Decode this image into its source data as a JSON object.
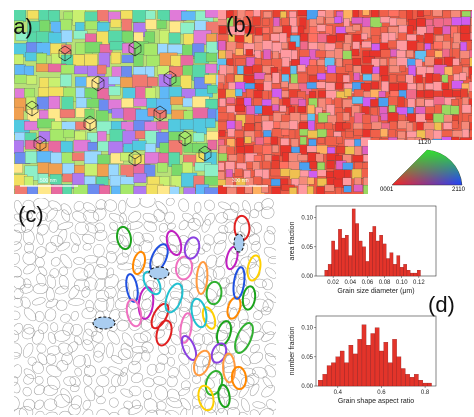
{
  "panels": {
    "a": {
      "label": "(a)",
      "scalebar_text": "500 nm"
    },
    "b": {
      "label": "(b)",
      "scalebar_text": "300 nm"
    },
    "c": {
      "label": "(c)"
    },
    "d": {
      "label": "(d)"
    }
  },
  "ipf_key": {
    "top": "11̅2̅0",
    "left": "0001",
    "right": "2110"
  },
  "colors": {
    "grain_red": "#e3342a",
    "background": "#ffffff"
  },
  "chart_data": [
    {
      "type": "bar",
      "xlabel": "Grain size diameter (μm)",
      "ylabel": "area fraction",
      "xlim": [
        0.0,
        0.14
      ],
      "ylim": [
        0.0,
        0.12
      ],
      "xticks": [
        "0.02",
        "0.04",
        "0.06",
        "0.08",
        "0.10",
        "0.12"
      ],
      "yticks": [
        "0.00",
        "0.05",
        "0.10"
      ],
      "x": [
        0.012,
        0.016,
        0.02,
        0.024,
        0.028,
        0.032,
        0.036,
        0.04,
        0.044,
        0.048,
        0.052,
        0.056,
        0.06,
        0.064,
        0.068,
        0.072,
        0.076,
        0.08,
        0.084,
        0.088,
        0.092,
        0.096,
        0.1,
        0.104,
        0.108,
        0.112,
        0.116,
        0.12
      ],
      "values": [
        0.01,
        0.02,
        0.06,
        0.045,
        0.08,
        0.065,
        0.07,
        0.035,
        0.115,
        0.09,
        0.06,
        0.05,
        0.025,
        0.075,
        0.085,
        0.06,
        0.07,
        0.055,
        0.03,
        0.04,
        0.02,
        0.035,
        0.015,
        0.02,
        0.01,
        0.005,
        0.005,
        0.01
      ]
    },
    {
      "type": "bar",
      "xlabel": "Grain shape aspect ratio",
      "ylabel": "number fraction",
      "xlim": [
        0.3,
        0.85
      ],
      "ylim": [
        0.0,
        0.12
      ],
      "xticks": [
        "0.4",
        "0.6",
        "0.8"
      ],
      "yticks": [
        "0.00",
        "0.05",
        "0.10"
      ],
      "x": [
        0.32,
        0.34,
        0.36,
        0.38,
        0.4,
        0.42,
        0.44,
        0.46,
        0.48,
        0.5,
        0.52,
        0.54,
        0.56,
        0.58,
        0.6,
        0.62,
        0.64,
        0.66,
        0.68,
        0.7,
        0.72,
        0.74,
        0.76,
        0.78,
        0.8,
        0.82
      ],
      "values": [
        0.01,
        0.02,
        0.035,
        0.04,
        0.05,
        0.06,
        0.04,
        0.07,
        0.055,
        0.08,
        0.105,
        0.07,
        0.09,
        0.1,
        0.06,
        0.075,
        0.04,
        0.08,
        0.05,
        0.03,
        0.02,
        0.015,
        0.02,
        0.01,
        0.005,
        0.005
      ]
    }
  ]
}
